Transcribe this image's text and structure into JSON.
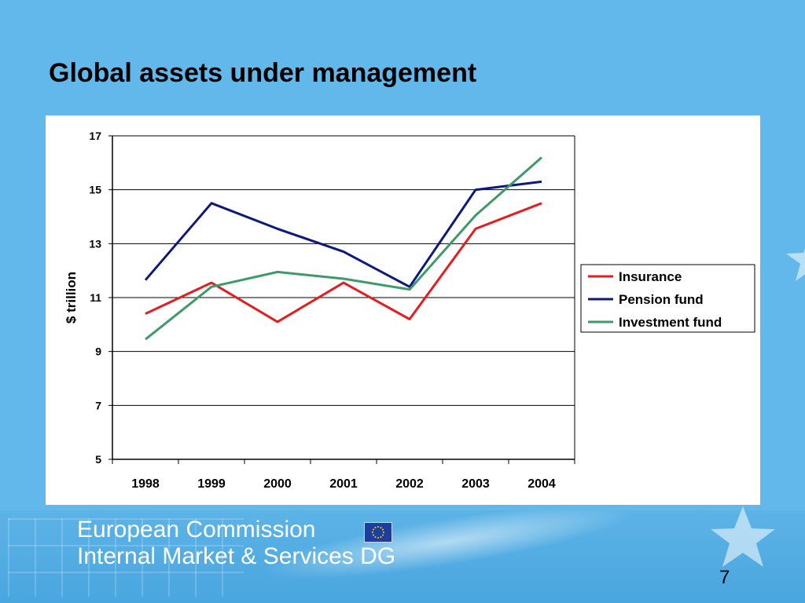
{
  "slide": {
    "title": "Global assets under management",
    "page_number": "7"
  },
  "footer": {
    "line1": "European Commission",
    "line2": "Internal Market & Services DG",
    "logo": "eu-flag-icon"
  },
  "colors": {
    "background": "#62b8ea",
    "insurance": "#e41e1e",
    "pension_fund": "#0d1a7a",
    "investment_fund": "#3e9a68"
  },
  "chart_data": {
    "type": "line",
    "title": "",
    "xlabel": "",
    "ylabel": "$ trillion",
    "x": [
      "1998",
      "1999",
      "2000",
      "2001",
      "2002",
      "2003",
      "2004"
    ],
    "ylim": [
      5,
      17
    ],
    "yticks": [
      "5",
      "7",
      "9",
      "11",
      "13",
      "15",
      "17"
    ],
    "grid": "horizontal",
    "legend_position": "right",
    "series": [
      {
        "name": "Insurance",
        "color": "#e41e1e",
        "values": [
          10.4,
          11.55,
          10.1,
          11.55,
          10.2,
          13.55,
          14.5
        ]
      },
      {
        "name": "Pension fund",
        "color": "#0d1a7a",
        "values": [
          11.65,
          14.5,
          13.55,
          12.7,
          11.4,
          15.0,
          15.3
        ]
      },
      {
        "name": "Investment fund",
        "color": "#3e9a68",
        "values": [
          9.45,
          11.4,
          11.95,
          11.7,
          11.3,
          14.05,
          16.2
        ]
      }
    ]
  }
}
